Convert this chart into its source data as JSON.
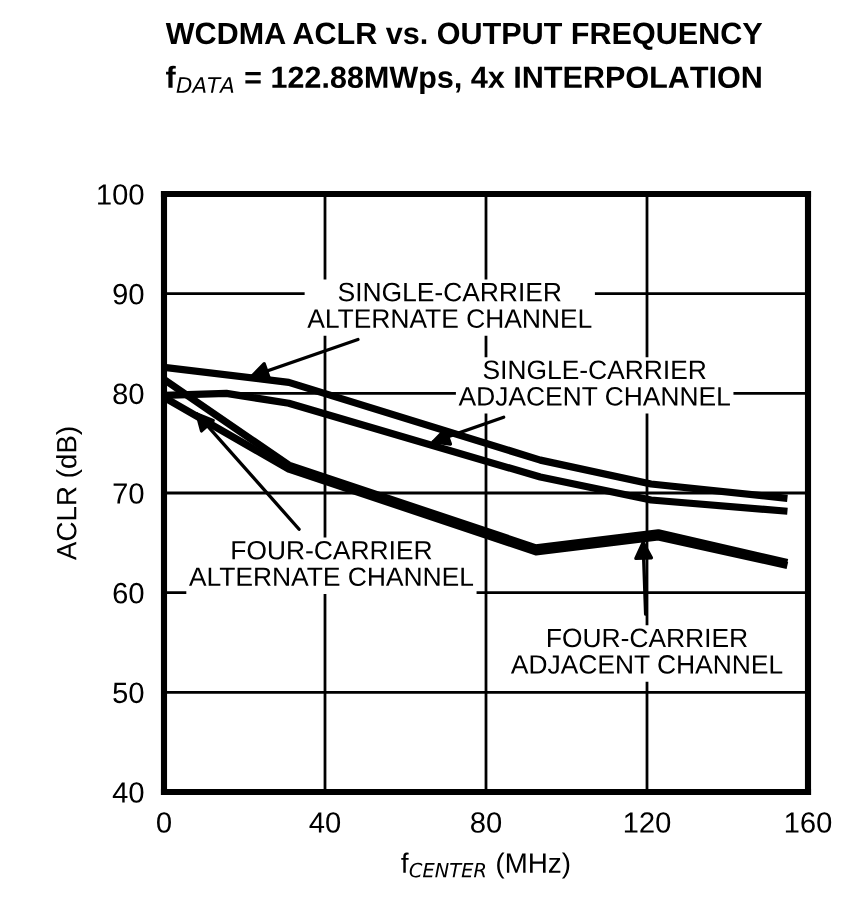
{
  "chart_data": {
    "type": "line",
    "title": "WCDMA ACLR vs. OUTPUT FREQUENCY",
    "subtitle": "f$_{DATA}$ = 122.88MWps, 4x INTERPOLATION",
    "xlabel": "f$_{CENTER}$ (MHz)",
    "ylabel": "ACLR (dB)",
    "xlim": [
      0,
      160
    ],
    "xticks": [
      0,
      40,
      80,
      120,
      160
    ],
    "ylim": [
      40,
      100
    ],
    "yticks": [
      40,
      50,
      60,
      70,
      80,
      90,
      100
    ],
    "grid": true,
    "legend": false,
    "marker": "none",
    "line_style": "solid",
    "series": [
      {
        "color": "#000000",
        "x": [
          0,
          31,
          93.5,
          121,
          154
        ],
        "values": [
          82.6,
          81.1,
          73.3,
          70.9,
          69.5
        ]
      },
      {
        "color": "#000000",
        "x": [
          0,
          15.5,
          31,
          93.5,
          121,
          154
        ],
        "values": [
          79.8,
          80.0,
          79.0,
          71.6,
          69.3,
          68.2
        ]
      },
      {
        "color": "#000000",
        "x": [
          0,
          31,
          92.4,
          122.8,
          154
        ],
        "values": [
          81.4,
          72.8,
          64.5,
          66.0,
          63.1
        ]
      },
      {
        "color": "#000000",
        "x": [
          0,
          31,
          92.4,
          122.8,
          154
        ],
        "values": [
          79.6,
          72.4,
          64.1,
          65.6,
          62.8
        ]
      }
    ],
    "annotations": [
      {
        "text": "SINGLE-CARRIER\nALTERNATE CHANNEL",
        "x": 21,
        "y": 81.6
      },
      {
        "text": "SINGLE-CARRIER\nADJACENT CHANNEL",
        "x": 66,
        "y": 75.0
      },
      {
        "text": "FOUR-CARRIER\nALTERNATE CHANNEL",
        "x": 7.6,
        "y": 78.2
      },
      {
        "text": "FOUR-CARRIER\nADJACENT CHANNEL",
        "x": 119,
        "y": 65.4
      }
    ]
  }
}
